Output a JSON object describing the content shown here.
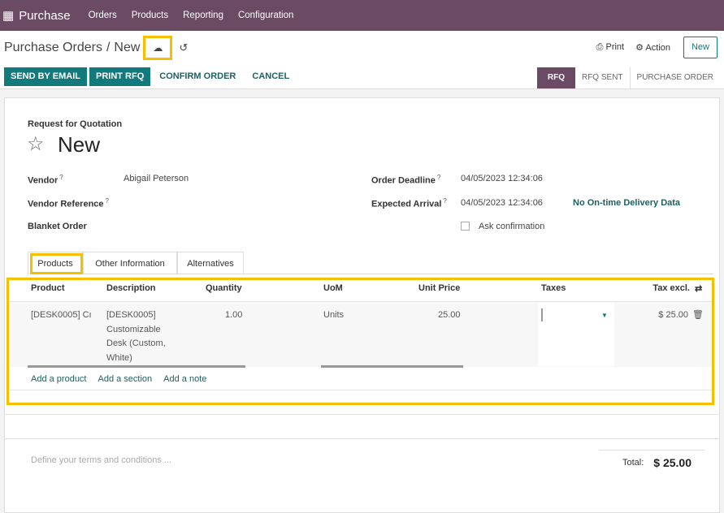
{
  "topbar": {
    "app": "Purchase",
    "menu": [
      "Orders",
      "Products",
      "Reporting",
      "Configuration"
    ]
  },
  "breadcrumb": {
    "parent": "Purchase Orders",
    "current": "New"
  },
  "actions": {
    "print": "Print",
    "action": "Action",
    "new": "New"
  },
  "buttons": {
    "send": "SEND BY EMAIL",
    "print_rfq": "PRINT RFQ",
    "confirm": "CONFIRM ORDER",
    "cancel": "CANCEL"
  },
  "stages": [
    "RFQ",
    "RFQ SENT",
    "PURCHASE ORDER"
  ],
  "form": {
    "subtitle": "Request for Quotation",
    "title": "New",
    "vendor_label": "Vendor",
    "vendor": "Abigail Peterson",
    "vendor_ref_label": "Vendor Reference",
    "blanket_label": "Blanket Order",
    "deadline_label": "Order Deadline",
    "deadline": "04/05/2023 12:34:06",
    "arrival_label": "Expected Arrival",
    "arrival": "04/05/2023 12:34:06",
    "delivery": "No On-time Delivery Data",
    "ask": "Ask confirmation",
    "q": "?"
  },
  "tabs": [
    "Products",
    "Other Information",
    "Alternatives"
  ],
  "table": {
    "headers": [
      "Product",
      "Description",
      "Quantity",
      "UoM",
      "Unit Price",
      "Taxes",
      "Tax excl."
    ],
    "row": {
      "product": "[DESK0005] Cı",
      "description": "[DESK0005] Customizable Desk (Custom, White)",
      "quantity": "1.00",
      "uom": "Units",
      "price": "25.00",
      "taxes": "",
      "subtotal": "$ 25.00"
    },
    "add": [
      "Add a product",
      "Add a section",
      "Add a note"
    ]
  },
  "terms_placeholder": "Define your terms and conditions ...",
  "total": {
    "label": "Total:",
    "value": "$ 25.00"
  },
  "colors": {
    "brand": "#6b4a63",
    "primary": "#127a7d",
    "highlight": "#f6c000"
  }
}
